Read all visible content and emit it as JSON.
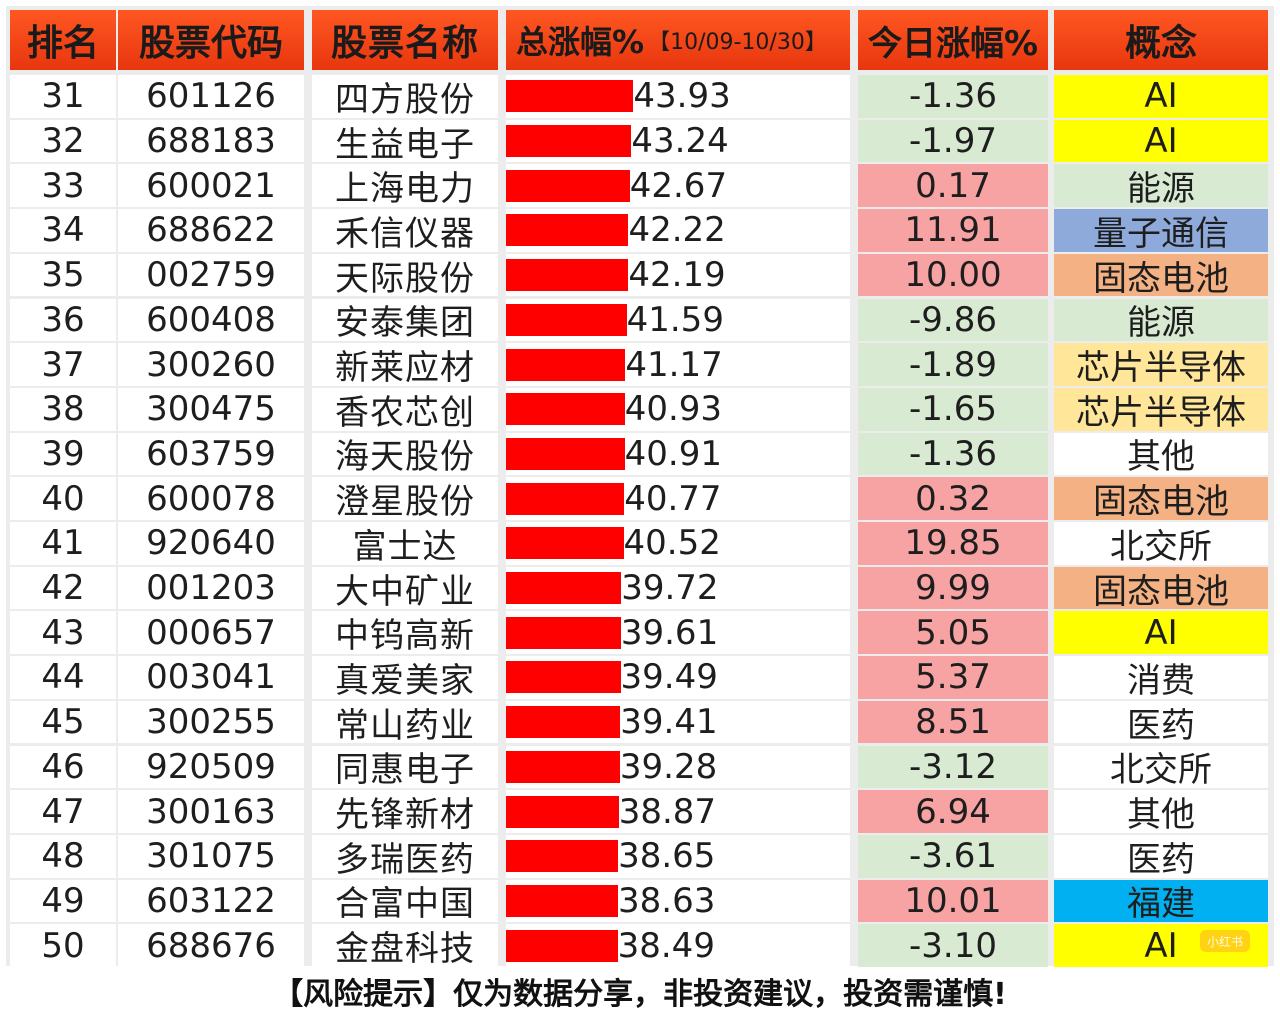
{
  "colors": {
    "header_bg": "#ff4a1c",
    "bar": "#ff0000",
    "positive_bg": "#f7a3a3",
    "negative_bg": "#d9ead3"
  },
  "header": {
    "rank": "排名",
    "code": "股票代码",
    "name": "股票名称",
    "gain_title": "总涨幅%",
    "gain_dates": "【10/09-10/30】",
    "today": "今日涨幅%",
    "concept": "概念"
  },
  "concept_colors": {
    "AI": "#ffff00",
    "能源": "#d9ead3",
    "量子通信": "#8eaadb",
    "固态电池": "#f4b183",
    "芯片半导体": "#ffe699",
    "其他": "#ffffff",
    "北交所": "#ffffff",
    "消费": "#ffffff",
    "医药": "#ffffff",
    "福建": "#00b0f0"
  },
  "rows": [
    {
      "rank": "31",
      "code": "601126",
      "name": "四方股份",
      "gain": 43.93,
      "gain_text": "43.93",
      "today": -1.36,
      "today_text": "-1.36",
      "concept": "AI"
    },
    {
      "rank": "32",
      "code": "688183",
      "name": "生益电子",
      "gain": 43.24,
      "gain_text": "43.24",
      "today": -1.97,
      "today_text": "-1.97",
      "concept": "AI"
    },
    {
      "rank": "33",
      "code": "600021",
      "name": "上海电力",
      "gain": 42.67,
      "gain_text": "42.67",
      "today": 0.17,
      "today_text": "0.17",
      "concept": "能源"
    },
    {
      "rank": "34",
      "code": "688622",
      "name": "禾信仪器",
      "gain": 42.22,
      "gain_text": "42.22",
      "today": 11.91,
      "today_text": "11.91",
      "concept": "量子通信"
    },
    {
      "rank": "35",
      "code": "002759",
      "name": "天际股份",
      "gain": 42.19,
      "gain_text": "42.19",
      "today": 10.0,
      "today_text": "10.00",
      "concept": "固态电池"
    },
    {
      "rank": "36",
      "code": "600408",
      "name": "安泰集团",
      "gain": 41.59,
      "gain_text": "41.59",
      "today": -9.86,
      "today_text": "-9.86",
      "concept": "能源"
    },
    {
      "rank": "37",
      "code": "300260",
      "name": "新莱应材",
      "gain": 41.17,
      "gain_text": "41.17",
      "today": -1.89,
      "today_text": "-1.89",
      "concept": "芯片半导体"
    },
    {
      "rank": "38",
      "code": "300475",
      "name": "香农芯创",
      "gain": 40.93,
      "gain_text": "40.93",
      "today": -1.65,
      "today_text": "-1.65",
      "concept": "芯片半导体"
    },
    {
      "rank": "39",
      "code": "603759",
      "name": "海天股份",
      "gain": 40.91,
      "gain_text": "40.91",
      "today": -1.36,
      "today_text": "-1.36",
      "concept": "其他"
    },
    {
      "rank": "40",
      "code": "600078",
      "name": "澄星股份",
      "gain": 40.77,
      "gain_text": "40.77",
      "today": 0.32,
      "today_text": "0.32",
      "concept": "固态电池"
    },
    {
      "rank": "41",
      "code": "920640",
      "name": "富士达",
      "gain": 40.52,
      "gain_text": "40.52",
      "today": 19.85,
      "today_text": "19.85",
      "concept": "北交所"
    },
    {
      "rank": "42",
      "code": "001203",
      "name": "大中矿业",
      "gain": 39.72,
      "gain_text": "39.72",
      "today": 9.99,
      "today_text": "9.99",
      "concept": "固态电池"
    },
    {
      "rank": "43",
      "code": "000657",
      "name": "中钨高新",
      "gain": 39.61,
      "gain_text": "39.61",
      "today": 5.05,
      "today_text": "5.05",
      "concept": "AI"
    },
    {
      "rank": "44",
      "code": "003041",
      "name": "真爱美家",
      "gain": 39.49,
      "gain_text": "39.49",
      "today": 5.37,
      "today_text": "5.37",
      "concept": "消费"
    },
    {
      "rank": "45",
      "code": "300255",
      "name": "常山药业",
      "gain": 39.41,
      "gain_text": "39.41",
      "today": 8.51,
      "today_text": "8.51",
      "concept": "医药"
    },
    {
      "rank": "46",
      "code": "920509",
      "name": "同惠电子",
      "gain": 39.28,
      "gain_text": "39.28",
      "today": -3.12,
      "today_text": "-3.12",
      "concept": "北交所"
    },
    {
      "rank": "47",
      "code": "300163",
      "name": "先锋新材",
      "gain": 38.87,
      "gain_text": "38.87",
      "today": 6.94,
      "today_text": "6.94",
      "concept": "其他"
    },
    {
      "rank": "48",
      "code": "301075",
      "name": "多瑞医药",
      "gain": 38.65,
      "gain_text": "38.65",
      "today": -3.61,
      "today_text": "-3.61",
      "concept": "医药"
    },
    {
      "rank": "49",
      "code": "603122",
      "name": "合富中国",
      "gain": 38.63,
      "gain_text": "38.63",
      "today": 10.01,
      "today_text": "10.01",
      "concept": "福建"
    },
    {
      "rank": "50",
      "code": "688676",
      "name": "金盘科技",
      "gain": 38.49,
      "gain_text": "38.49",
      "today": -3.1,
      "today_text": "-3.10",
      "concept": "AI"
    }
  ],
  "footer": "【风险提示】仅为数据分享，非投资建议，投资需谨慎!",
  "watermark": "小红书"
}
